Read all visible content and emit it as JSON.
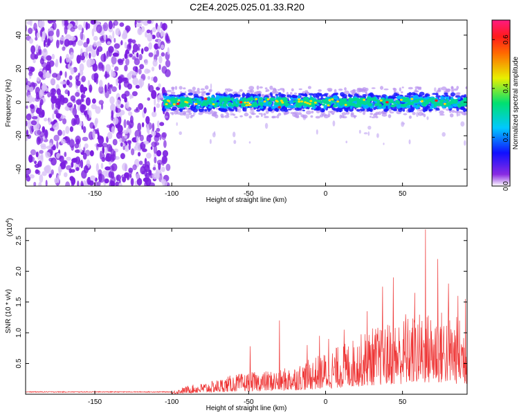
{
  "title": "C2E4.2025.025.01.33.R20",
  "colors": {
    "noise": "#7b1fe0",
    "signal_low": "#1a1aff",
    "signal_mid": "#00d890",
    "signal_high": "#ffe000",
    "peak": "#ff2020",
    "snr_line": "#ee3333"
  },
  "chart_data": [
    {
      "type": "heatmap",
      "xlabel": "Height of straight line (km)",
      "ylabel": "Frequency (Hz)",
      "xlim": [
        -195,
        92
      ],
      "ylim": [
        -50,
        49
      ],
      "xticks": [
        -150,
        -100,
        -50,
        0,
        50
      ],
      "yticks": [
        -40,
        -20,
        0,
        20,
        40
      ],
      "colorbar": {
        "label": "Normalized spectral amplitude",
        "range": [
          0.0,
          0.68
        ],
        "ticks": [
          0.0,
          0.2,
          0.4,
          0.6
        ],
        "tick_labels": [
          "0.0",
          "0.2",
          "0.4",
          "0.6"
        ],
        "colormap": "rainbow (purple→blue→cyan→green→yellow→red→magenta)"
      },
      "regions": [
        {
          "description": "noise",
          "x_range": [
            -195,
            -105
          ],
          "freq_range": [
            -50,
            49
          ]
        },
        {
          "description": "signal band",
          "x_range": [
            -105,
            92
          ],
          "center_freq": 0,
          "half_width": 5
        }
      ],
      "peaks": [
        {
          "x": -96,
          "y": -1
        },
        {
          "x": -78,
          "y": 2
        },
        {
          "x": -55,
          "y": 0
        },
        {
          "x": -30,
          "y": -3
        },
        {
          "x": 40,
          "y": 0
        },
        {
          "x": 72,
          "y": 1
        }
      ]
    },
    {
      "type": "line",
      "xlabel": "Height of straight line (km)",
      "ylabel": "SNR (10 * v/v)",
      "multiplier_label": "(x10",
      "multiplier_exp": "4",
      "xlim": [
        -195,
        92
      ],
      "ylim": [
        0,
        2.7
      ],
      "xticks": [
        -150,
        -100,
        -50,
        0,
        50
      ],
      "yticks": [
        0.5,
        1.0,
        1.5,
        2.0,
        2.5
      ],
      "ytick_labels": [
        "0.5",
        "1.0",
        "1.5",
        "2.0",
        "2.5"
      ],
      "envelope": [
        {
          "x": -195,
          "y": 0.04
        },
        {
          "x": -100,
          "y": 0.04
        },
        {
          "x": -90,
          "y": 0.12
        },
        {
          "x": -75,
          "y": 0.18
        },
        {
          "x": -60,
          "y": 0.28
        },
        {
          "x": -45,
          "y": 0.32
        },
        {
          "x": -30,
          "y": 0.35
        },
        {
          "x": -15,
          "y": 0.45
        },
        {
          "x": 0,
          "y": 0.6
        },
        {
          "x": 15,
          "y": 0.75
        },
        {
          "x": 30,
          "y": 0.95
        },
        {
          "x": 45,
          "y": 1.05
        },
        {
          "x": 60,
          "y": 1.15
        },
        {
          "x": 75,
          "y": 1.2
        },
        {
          "x": 92,
          "y": 1.05
        }
      ],
      "spikes": [
        {
          "x": -49,
          "y": 0.78
        },
        {
          "x": -30,
          "y": 1.2
        },
        {
          "x": -12,
          "y": 0.8
        },
        {
          "x": -4,
          "y": 0.95
        },
        {
          "x": 2,
          "y": 0.9
        },
        {
          "x": 12,
          "y": 1.05
        },
        {
          "x": 27,
          "y": 1.35
        },
        {
          "x": 37,
          "y": 1.75
        },
        {
          "x": 44,
          "y": 1.9
        },
        {
          "x": 52,
          "y": 1.3
        },
        {
          "x": 58,
          "y": 1.65
        },
        {
          "x": 65,
          "y": 2.68
        },
        {
          "x": 73,
          "y": 2.2
        },
        {
          "x": 80,
          "y": 1.8
        },
        {
          "x": 86,
          "y": 1.6
        },
        {
          "x": 91,
          "y": 1.55
        }
      ]
    }
  ]
}
